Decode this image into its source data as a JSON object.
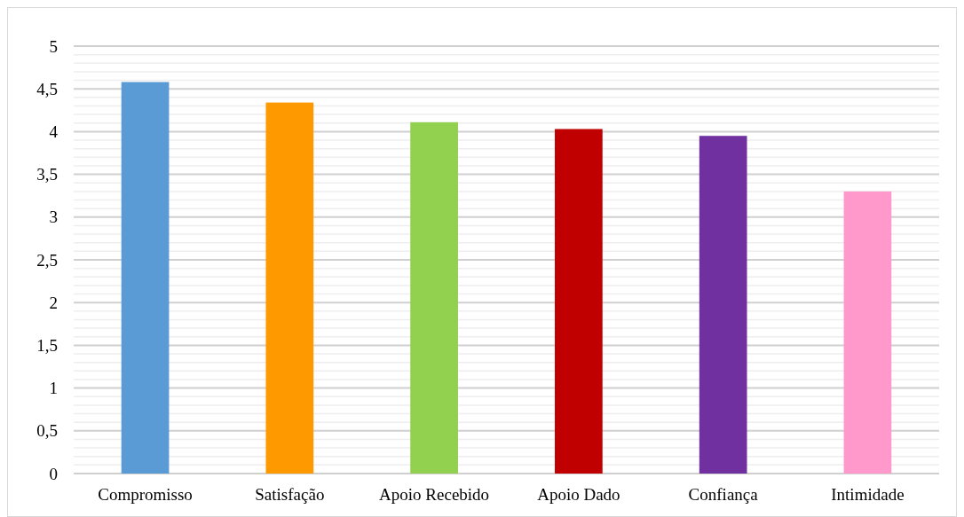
{
  "chart_data": {
    "type": "bar",
    "categories": [
      "Compromisso",
      "Satisfação",
      "Apoio Recebido",
      "Apoio Dado",
      "Confiança",
      "Intimidade"
    ],
    "values": [
      4.58,
      4.34,
      4.11,
      4.03,
      3.95,
      3.3
    ],
    "colors": [
      "#5b9bd5",
      "#ff9900",
      "#92d050",
      "#c00000",
      "#7030a0",
      "#ff99cc"
    ],
    "ylim": [
      0,
      5
    ],
    "yticks": [
      0,
      {
        "value": 0.1,
        "label": null
      },
      {
        "value": 0.2,
        "label": null
      },
      {
        "value": 0.3,
        "label": null
      },
      {
        "value": 0.4,
        "label": null
      },
      {
        "value": 0.5,
        "label": "0,5"
      },
      {
        "value": 0.6,
        "label": null
      },
      {
        "value": 0.7,
        "label": null
      },
      {
        "value": 0.8,
        "label": null
      },
      {
        "value": 0.9,
        "label": null
      },
      1,
      {
        "value": 1.1,
        "label": null
      },
      {
        "value": 1.2,
        "label": null
      },
      {
        "value": 1.3,
        "label": null
      },
      {
        "value": 1.4,
        "label": null
      },
      {
        "value": 1.5,
        "label": "1,5"
      },
      {
        "value": 1.6,
        "label": null
      },
      {
        "value": 1.7,
        "label": null
      },
      {
        "value": 1.8,
        "label": null
      },
      {
        "value": 1.9,
        "label": null
      },
      2,
      {
        "value": 2.1,
        "label": null
      },
      {
        "value": 2.2,
        "label": null
      },
      {
        "value": 2.3,
        "label": null
      },
      {
        "value": 2.4,
        "label": null
      },
      {
        "value": 2.5,
        "label": "2,5"
      },
      {
        "value": 2.6,
        "label": null
      },
      {
        "value": 2.7,
        "label": null
      },
      {
        "value": 2.8,
        "label": null
      },
      {
        "value": 2.9,
        "label": null
      },
      3,
      {
        "value": 3.1,
        "label": null
      },
      {
        "value": 3.2,
        "label": null
      },
      {
        "value": 3.3,
        "label": null
      },
      {
        "value": 3.4,
        "label": null
      },
      {
        "value": 3.5,
        "label": "3,5"
      },
      {
        "value": 3.6,
        "label": null
      },
      {
        "value": 3.7,
        "label": null
      },
      {
        "value": 3.8,
        "label": null
      },
      {
        "value": 3.9,
        "label": null
      },
      4,
      {
        "value": 4.1,
        "label": null
      },
      {
        "value": 4.2,
        "label": null
      },
      {
        "value": 4.3,
        "label": null
      },
      {
        "value": 4.4,
        "label": null
      },
      {
        "value": 4.5,
        "label": "4,5"
      },
      {
        "value": 4.6,
        "label": null
      },
      {
        "value": 4.7,
        "label": null
      },
      {
        "value": 4.8,
        "label": null
      },
      {
        "value": 4.9,
        "label": null
      },
      5
    ],
    "grid": true
  }
}
